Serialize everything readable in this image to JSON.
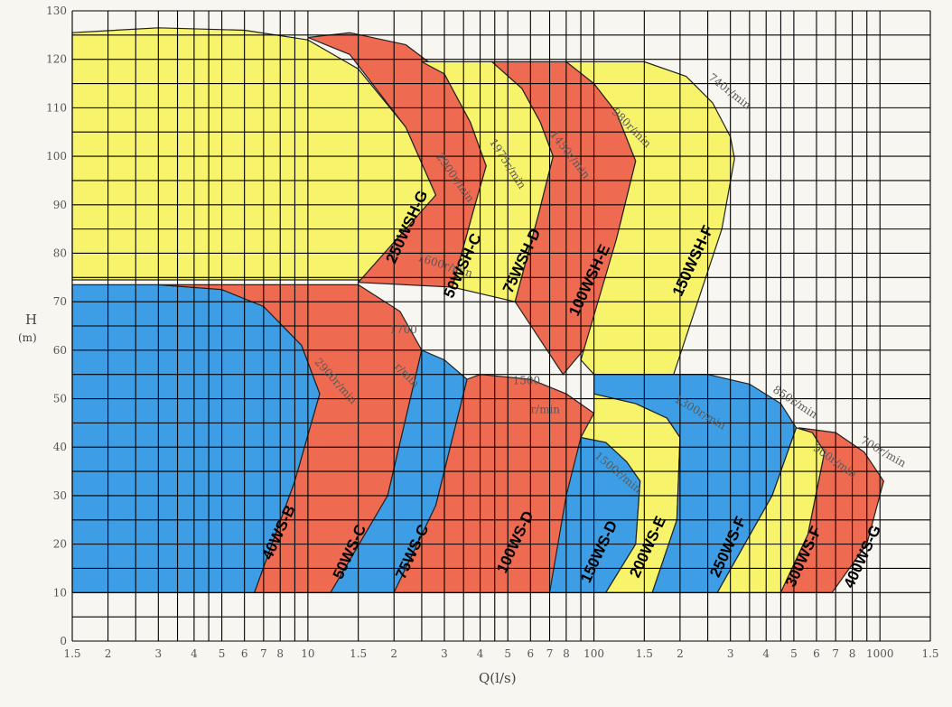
{
  "chart_data": {
    "type": "area",
    "title": "",
    "xlabel": "Q(l/s)",
    "ylabel_line1": "H",
    "ylabel_line2": "(m)",
    "x_scale": "log",
    "xlim": [
      1.5,
      1500
    ],
    "ylim": [
      0,
      130
    ],
    "grid": true,
    "colors": {
      "background": "#f7f6f1",
      "yellow": "#f7f36a",
      "red": "#ee6a50",
      "blue": "#3d9ee6",
      "grid": "#000000"
    },
    "x_ticks": [
      {
        "v": 1.5,
        "t": "1.5"
      },
      {
        "v": 2,
        "t": "2"
      },
      {
        "v": 3,
        "t": "3"
      },
      {
        "v": 4,
        "t": "4"
      },
      {
        "v": 5,
        "t": "5"
      },
      {
        "v": 6,
        "t": "6"
      },
      {
        "v": 7,
        "t": "7"
      },
      {
        "v": 8,
        "t": "8"
      },
      {
        "v": 10,
        "t": "10"
      },
      {
        "v": 15,
        "t": "1.5"
      },
      {
        "v": 20,
        "t": "2"
      },
      {
        "v": 30,
        "t": "3"
      },
      {
        "v": 40,
        "t": "4"
      },
      {
        "v": 50,
        "t": "5"
      },
      {
        "v": 60,
        "t": "6"
      },
      {
        "v": 70,
        "t": "7"
      },
      {
        "v": 80,
        "t": "8"
      },
      {
        "v": 100,
        "t": "100"
      },
      {
        "v": 150,
        "t": "1.5"
      },
      {
        "v": 200,
        "t": "2"
      },
      {
        "v": 300,
        "t": "3"
      },
      {
        "v": 400,
        "t": "4"
      },
      {
        "v": 500,
        "t": "5"
      },
      {
        "v": 600,
        "t": "6"
      },
      {
        "v": 700,
        "t": "7"
      },
      {
        "v": 800,
        "t": "8"
      },
      {
        "v": 1000,
        "t": "1000"
      },
      {
        "v": 1500,
        "t": "1.5"
      }
    ],
    "y_ticks": [
      {
        "v": 0,
        "t": "0"
      },
      {
        "v": 10,
        "t": "10"
      },
      {
        "v": 20,
        "t": "20"
      },
      {
        "v": 30,
        "t": "30"
      },
      {
        "v": 40,
        "t": "40"
      },
      {
        "v": 50,
        "t": "50"
      },
      {
        "v": 60,
        "t": "60"
      },
      {
        "v": 70,
        "t": "70"
      },
      {
        "v": 80,
        "t": "80"
      },
      {
        "v": 90,
        "t": "90"
      },
      {
        "v": 100,
        "t": "100"
      },
      {
        "v": 110,
        "t": "110"
      },
      {
        "v": 120,
        "t": "120"
      },
      {
        "v": 130,
        "t": "130"
      }
    ],
    "series": [
      {
        "name": "250WSH-G",
        "color": "yellow",
        "rpm": "1600r/min",
        "boundary": [
          [
            1.5,
            74.5
          ],
          [
            1.5,
            125.5
          ],
          [
            3,
            126.5
          ],
          [
            6,
            126
          ],
          [
            10,
            124
          ],
          [
            15,
            118
          ],
          [
            22,
            106
          ],
          [
            28,
            92
          ],
          [
            22,
            74.5
          ]
        ]
      },
      {
        "name": "50WSH-C",
        "color": "red",
        "rpm": "2900r/min",
        "boundary": [
          [
            15,
            74
          ],
          [
            28,
            92
          ],
          [
            22,
            106
          ],
          [
            14,
            121
          ],
          [
            10,
            124.5
          ],
          [
            14,
            125.5
          ],
          [
            22,
            123
          ],
          [
            30,
            117
          ],
          [
            37,
            107
          ],
          [
            42,
            98
          ],
          [
            38,
            89
          ],
          [
            32,
            73
          ]
        ]
      },
      {
        "name": "75WSH-D",
        "color": "yellow",
        "rpm": "1975r/min",
        "boundary": [
          [
            32,
            73
          ],
          [
            38,
            89
          ],
          [
            42,
            98
          ],
          [
            37,
            107
          ],
          [
            30,
            117
          ],
          [
            25,
            119.5
          ],
          [
            44,
            119.5
          ],
          [
            56,
            114
          ],
          [
            65,
            107
          ],
          [
            72,
            100
          ],
          [
            64,
            88
          ],
          [
            53,
            70
          ]
        ]
      },
      {
        "name": "100WSH-E",
        "color": "red",
        "rpm": "1450r/min",
        "boundary": [
          [
            53,
            70
          ],
          [
            64,
            88
          ],
          [
            72,
            100
          ],
          [
            65,
            107
          ],
          [
            56,
            114
          ],
          [
            44,
            119.5
          ],
          [
            80,
            119.5
          ],
          [
            100,
            115
          ],
          [
            120,
            109
          ],
          [
            140,
            99
          ],
          [
            120,
            83
          ],
          [
            98,
            62
          ],
          [
            78,
            55
          ]
        ]
      },
      {
        "name": "150WSH-F",
        "color": "yellow",
        "rpm": "980r/min",
        "boundary": [
          [
            90,
            58
          ],
          [
            120,
            83
          ],
          [
            140,
            99
          ],
          [
            120,
            109
          ],
          [
            100,
            115
          ],
          [
            80,
            119.5
          ],
          [
            150,
            119.5
          ],
          [
            210,
            116.5
          ],
          [
            260,
            111
          ],
          [
            300,
            104
          ],
          [
            310,
            99.5
          ],
          [
            280,
            85
          ],
          [
            190,
            55
          ],
          [
            100,
            55
          ]
        ]
      },
      {
        "name": "40WS-B",
        "color": "blue",
        "rpm": "2900r/min",
        "boundary": [
          [
            1.5,
            10
          ],
          [
            1.5,
            73.5
          ],
          [
            3,
            73.5
          ],
          [
            5,
            72.5
          ],
          [
            7,
            69
          ],
          [
            9.5,
            61
          ],
          [
            11,
            51
          ],
          [
            9,
            33
          ],
          [
            6.5,
            10
          ]
        ]
      },
      {
        "name": "50WS-C",
        "color": "red",
        "rpm": "1700r/min",
        "boundary": [
          [
            6.5,
            10
          ],
          [
            9,
            33
          ],
          [
            11,
            51
          ],
          [
            9.5,
            61
          ],
          [
            7,
            69
          ],
          [
            5,
            72.5
          ],
          [
            3,
            73.5
          ],
          [
            15,
            73.5
          ],
          [
            21,
            68
          ],
          [
            25,
            60
          ],
          [
            19,
            30
          ],
          [
            12,
            10
          ]
        ]
      },
      {
        "name": "75WS-C",
        "color": "blue",
        "rpm": "",
        "boundary": [
          [
            12,
            10
          ],
          [
            19,
            30
          ],
          [
            25,
            60
          ],
          [
            30,
            58
          ],
          [
            36,
            54
          ],
          [
            28,
            28
          ],
          [
            20,
            10
          ]
        ]
      },
      {
        "name": "100WS-D",
        "color": "red",
        "rpm": "1500r/min",
        "boundary": [
          [
            20,
            10
          ],
          [
            28,
            28
          ],
          [
            36,
            54
          ],
          [
            40,
            55
          ],
          [
            60,
            54
          ],
          [
            80,
            51
          ],
          [
            100,
            47
          ],
          [
            85,
            30
          ],
          [
            70,
            10
          ]
        ]
      },
      {
        "name": "150WS-D",
        "color": "blue",
        "rpm": "1500r/min",
        "boundary": [
          [
            70,
            10
          ],
          [
            80,
            30
          ],
          [
            90,
            42
          ],
          [
            110,
            41
          ],
          [
            130,
            37
          ],
          [
            145,
            33
          ],
          [
            140,
            20
          ],
          [
            110,
            10
          ]
        ]
      },
      {
        "name": "200WS-E",
        "color": "yellow",
        "rpm": "1300r/min",
        "boundary": [
          [
            110,
            10
          ],
          [
            140,
            20
          ],
          [
            145,
            33
          ],
          [
            130,
            37
          ],
          [
            110,
            41
          ],
          [
            90,
            42
          ],
          [
            100,
            47
          ],
          [
            100,
            51
          ],
          [
            140,
            49
          ],
          [
            180,
            46
          ],
          [
            200,
            42
          ],
          [
            195,
            25
          ],
          [
            160,
            10
          ]
        ]
      },
      {
        "name": "250WS-F",
        "color": "blue",
        "rpm": "850r/min",
        "boundary": [
          [
            160,
            10
          ],
          [
            195,
            25
          ],
          [
            200,
            42
          ],
          [
            180,
            46
          ],
          [
            140,
            49
          ],
          [
            100,
            51
          ],
          [
            100,
            55
          ],
          [
            250,
            55
          ],
          [
            350,
            53
          ],
          [
            450,
            49
          ],
          [
            510,
            44
          ],
          [
            420,
            30
          ],
          [
            270,
            10
          ]
        ]
      },
      {
        "name": "300WS-F",
        "color": "yellow",
        "rpm": "900r/min",
        "boundary": [
          [
            270,
            10
          ],
          [
            420,
            30
          ],
          [
            510,
            44
          ],
          [
            580,
            43
          ],
          [
            640,
            39
          ],
          [
            560,
            22
          ],
          [
            450,
            10
          ]
        ]
      },
      {
        "name": "400WS-G",
        "color": "red",
        "rpm": "700r/min",
        "boundary": [
          [
            450,
            10
          ],
          [
            560,
            22
          ],
          [
            640,
            39
          ],
          [
            580,
            43
          ],
          [
            520,
            44
          ],
          [
            700,
            43
          ],
          [
            880,
            39
          ],
          [
            1030,
            33
          ],
          [
            900,
            20
          ],
          [
            680,
            10
          ]
        ]
      }
    ],
    "annotations": [
      {
        "text": "1600r/min",
        "x": 24,
        "y": 78.5,
        "rot": 17
      },
      {
        "text": "2900r/min",
        "x": 28,
        "y": 100,
        "rot": 55
      },
      {
        "text": "1975r/min",
        "x": 43,
        "y": 103,
        "rot": 57
      },
      {
        "text": "1450r/min",
        "x": 70,
        "y": 104.5,
        "rot": 52
      },
      {
        "text": "980r/min",
        "x": 115,
        "y": 109,
        "rot": 45
      },
      {
        "text": "740r/min",
        "x": 250,
        "y": 116,
        "rot": 38
      },
      {
        "text": "2900r/min",
        "x": 10.5,
        "y": 57.5,
        "rot": 48
      },
      {
        "text": "1700",
        "x": 19.3,
        "y": 63.5,
        "rot": 0
      },
      {
        "text": "r/min",
        "x": 20,
        "y": 56.5,
        "rot": 45
      },
      {
        "text": "1500",
        "x": 52,
        "y": 53,
        "rot": 0
      },
      {
        "text": "r/min",
        "x": 60,
        "y": 47,
        "rot": 0
      },
      {
        "text": "1500r/min",
        "x": 100,
        "y": 38,
        "rot": 40
      },
      {
        "text": "1300r/min",
        "x": 190,
        "y": 49.5,
        "rot": 30
      },
      {
        "text": "850r/min",
        "x": 420,
        "y": 51.5,
        "rot": 33
      },
      {
        "text": "900r/min",
        "x": 580,
        "y": 39.5,
        "rot": 35
      },
      {
        "text": "700r/min",
        "x": 850,
        "y": 41,
        "rot": 30
      }
    ],
    "model_labels": [
      {
        "text": "250WSH-G",
        "x": 23,
        "y": 85,
        "rot": -65
      },
      {
        "text": "50WSH-C",
        "x": 36,
        "y": 77,
        "rot": -65
      },
      {
        "text": "75WSH-D",
        "x": 58,
        "y": 78,
        "rot": -65
      },
      {
        "text": "100WSH-E",
        "x": 100,
        "y": 74,
        "rot": -65
      },
      {
        "text": "150WSH-F",
        "x": 230,
        "y": 78,
        "rot": -65
      },
      {
        "text": "40WS-B",
        "x": 8.2,
        "y": 22,
        "rot": -65
      },
      {
        "text": "50WS-C",
        "x": 14.5,
        "y": 18,
        "rot": -65
      },
      {
        "text": "75WS-C",
        "x": 24,
        "y": 18,
        "rot": -65
      },
      {
        "text": "100WS-D",
        "x": 55,
        "y": 20,
        "rot": -65
      },
      {
        "text": "150WS-D",
        "x": 108,
        "y": 18,
        "rot": -65
      },
      {
        "text": "200WS-E",
        "x": 160,
        "y": 19,
        "rot": -65
      },
      {
        "text": "250WS-F",
        "x": 305,
        "y": 19,
        "rot": -65
      },
      {
        "text": "300WS-F",
        "x": 560,
        "y": 17,
        "rot": -65
      },
      {
        "text": "400WS-G",
        "x": 900,
        "y": 17,
        "rot": -65
      }
    ]
  }
}
